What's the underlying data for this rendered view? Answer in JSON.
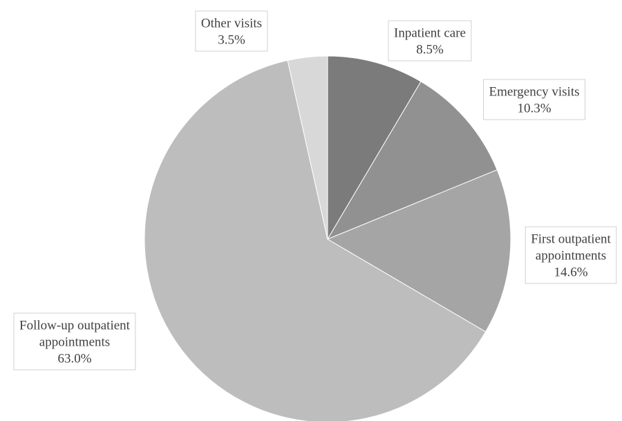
{
  "chart_data": {
    "type": "pie",
    "title": "",
    "slices": [
      {
        "label_lines": [
          "Inpatient care"
        ],
        "value_label": "8.5%",
        "value": 8.5,
        "color": "#7b7b7b"
      },
      {
        "label_lines": [
          "Emergency visits"
        ],
        "value_label": "10.3%",
        "value": 10.3,
        "color": "#919191"
      },
      {
        "label_lines": [
          "First outpatient",
          "appointments"
        ],
        "value_label": "14.6%",
        "value": 14.6,
        "color": "#a5a5a5"
      },
      {
        "label_lines": [
          "Follow-up outpatient",
          "appointments"
        ],
        "value_label": "63.0%",
        "value": 63.0,
        "color": "#bdbdbd"
      },
      {
        "label_lines": [
          "Other visits"
        ],
        "value_label": "3.5%",
        "value": 3.5,
        "color": "#d8d8d8"
      }
    ],
    "start_angle_deg": 0,
    "direction": "clockwise",
    "legend": "none"
  }
}
